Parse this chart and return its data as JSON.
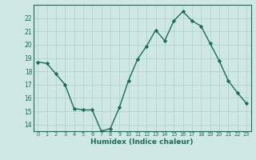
{
  "x": [
    0,
    1,
    2,
    3,
    4,
    5,
    6,
    7,
    8,
    9,
    10,
    11,
    12,
    13,
    14,
    15,
    16,
    17,
    18,
    19,
    20,
    21,
    22,
    23
  ],
  "y": [
    18.7,
    18.6,
    17.8,
    17.0,
    15.2,
    15.1,
    15.1,
    13.5,
    13.7,
    15.3,
    17.3,
    18.9,
    19.9,
    21.1,
    20.3,
    21.8,
    22.5,
    21.8,
    21.4,
    20.1,
    18.8,
    17.3,
    16.4,
    15.6
  ],
  "line_color": "#1a6b5a",
  "marker": "D",
  "marker_size": 2.2,
  "bg_color": "#cfe8e5",
  "grid_color": "#afd4d0",
  "tick_color": "#1a6b5a",
  "label_color": "#1a6b5a",
  "xlabel": "Humidex (Indice chaleur)",
  "ylim": [
    13.5,
    23.0
  ],
  "xlim": [
    -0.5,
    23.5
  ],
  "yticks": [
    14,
    15,
    16,
    17,
    18,
    19,
    20,
    21,
    22
  ],
  "xticks": [
    0,
    1,
    2,
    3,
    4,
    5,
    6,
    7,
    8,
    9,
    10,
    11,
    12,
    13,
    14,
    15,
    16,
    17,
    18,
    19,
    20,
    21,
    22,
    23
  ]
}
